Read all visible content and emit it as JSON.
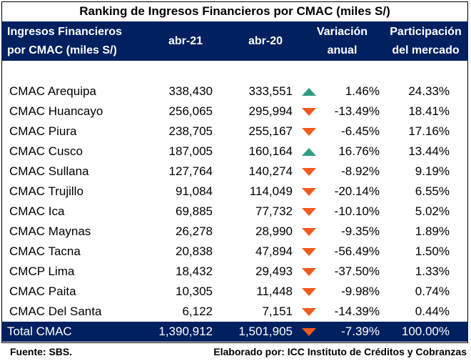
{
  "title": "Ranking de Ingresos Financieros por CMAC (miles S/)",
  "header": {
    "name_line1": "Ingresos Financieros",
    "name_line2": "por CMAC (miles S/)",
    "col_abr21": "abr-21",
    "col_abr20": "abr-20",
    "var_line1": "Variación",
    "var_line2": "anual",
    "part_line1": "Participación",
    "part_line2": "del mercado"
  },
  "rows": [
    {
      "name": "CMAC Arequipa",
      "abr21": "338,430",
      "abr20": "333,551",
      "trend": "up",
      "var": "1.46%",
      "part": "24.33%"
    },
    {
      "name": "CMAC Huancayo",
      "abr21": "256,065",
      "abr20": "295,994",
      "trend": "down",
      "var": "-13.49%",
      "part": "18.41%"
    },
    {
      "name": "CMAC Piura",
      "abr21": "238,705",
      "abr20": "255,167",
      "trend": "down",
      "var": "-6.45%",
      "part": "17.16%"
    },
    {
      "name": "CMAC Cusco",
      "abr21": "187,005",
      "abr20": "160,164",
      "trend": "up",
      "var": "16.76%",
      "part": "13.44%"
    },
    {
      "name": "CMAC Sullana",
      "abr21": "127,764",
      "abr20": "140,274",
      "trend": "down",
      "var": "-8.92%",
      "part": "9.19%"
    },
    {
      "name": "CMAC Trujillo",
      "abr21": "91,084",
      "abr20": "114,049",
      "trend": "down",
      "var": "-20.14%",
      "part": "6.55%"
    },
    {
      "name": "CMAC Ica",
      "abr21": "69,885",
      "abr20": "77,732",
      "trend": "down",
      "var": "-10.10%",
      "part": "5.02%"
    },
    {
      "name": "CMAC Maynas",
      "abr21": "26,278",
      "abr20": "28,990",
      "trend": "down",
      "var": "-9.35%",
      "part": "1.89%"
    },
    {
      "name": "CMAC Tacna",
      "abr21": "20,838",
      "abr20": "47,894",
      "trend": "down",
      "var": "-56.49%",
      "part": "1.50%"
    },
    {
      "name": "CMCP Lima",
      "abr21": "18,432",
      "abr20": "29,493",
      "trend": "down",
      "var": "-37.50%",
      "part": "1.33%"
    },
    {
      "name": "CMAC Paita",
      "abr21": "10,305",
      "abr20": "11,448",
      "trend": "down",
      "var": "-9.98%",
      "part": "0.74%"
    },
    {
      "name": "CMAC Del Santa",
      "abr21": "6,122",
      "abr20": "7,151",
      "trend": "down",
      "var": "-14.39%",
      "part": "0.44%"
    }
  ],
  "total": {
    "name": "Total CMAC",
    "abr21": "1,390,912",
    "abr20": "1,501,905",
    "trend": "down",
    "var": "-7.39%",
    "part": "100.00%"
  },
  "footer": {
    "source": "Fuente: SBS.",
    "credit": "Elaborado por: ICC Instituto de Créditos y Cobranzas"
  },
  "colors": {
    "header_bg": "#002060",
    "up_icon": "#2e9e83",
    "down_icon": "#f05a1e"
  }
}
